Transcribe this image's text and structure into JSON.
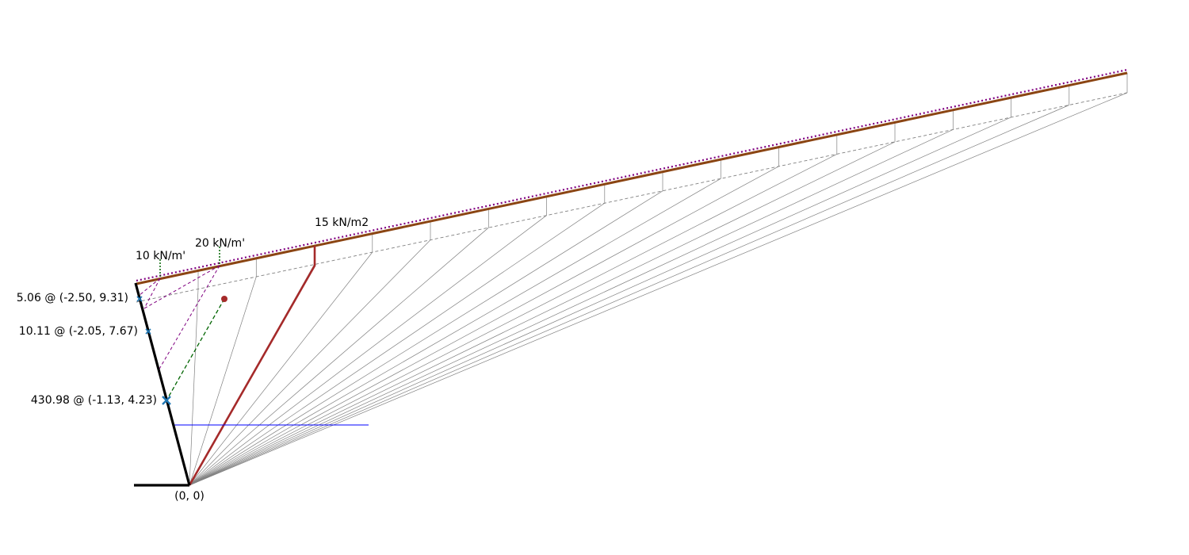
{
  "loads": {
    "line_load_1": "10 kN/m'",
    "line_load_2": "20 kN/m'",
    "surface_load": "15 kN/m2"
  },
  "forces": [
    {
      "label": "5.06 @ (-2.50, 9.31)"
    },
    {
      "label": "10.11 @ (-2.05, 7.67)"
    },
    {
      "label": "430.98 @ (-1.13, 4.23)"
    }
  ],
  "origin_label": "(0, 0)",
  "colors": {
    "wall": "#000000",
    "ground_surface": "#8b4513",
    "load_dotted": "#800080",
    "critical_plane": "#a52a2a",
    "line_load_path": "#006400",
    "force_marker": "#1f77b4",
    "water_level": "#0000ff",
    "wedge_lines": "#808080"
  }
}
